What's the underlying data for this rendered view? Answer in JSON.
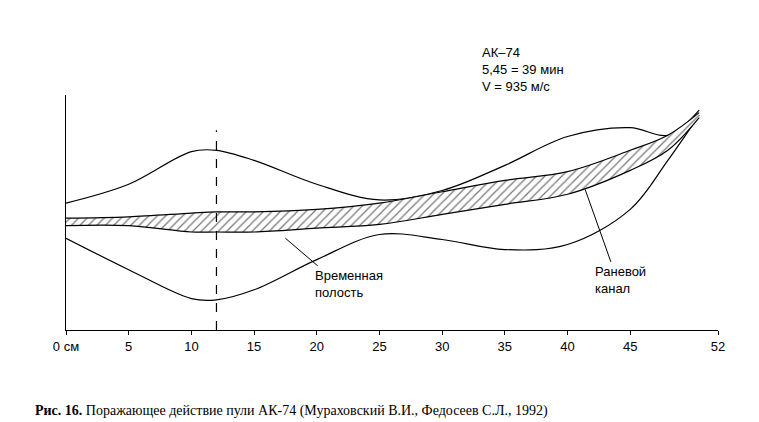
{
  "chart_data": {
    "type": "line",
    "annotations": [
      "АК–74",
      "5,45 = 39 мин",
      "V = 935 м/с"
    ],
    "caption": {
      "label": "Рис. 16.",
      "text": "Поражающее действие пули АК-74 (Мураховский В.И., Федосеев С.Л., 1992)"
    },
    "x": [
      0,
      5,
      10,
      12,
      15,
      20,
      25,
      30,
      35,
      40,
      45,
      48,
      50.5
    ],
    "series": [
      {
        "name": "Временная полость",
        "color": "#000000",
        "upper": [
          1.5,
          3.0,
          5.6,
          5.7,
          4.9,
          3.0,
          1.75,
          2.5,
          4.5,
          6.8,
          7.5,
          6.9,
          8.9
        ],
        "lower": [
          -1.3,
          -3.8,
          -6.1,
          -6.2,
          -5.4,
          -3.0,
          -1.0,
          -1.4,
          -2.2,
          -1.8,
          1.0,
          4.9,
          8.5
        ]
      },
      {
        "name": "Раневой канал",
        "color": "#000000",
        "upper": [
          0.3,
          0.4,
          0.7,
          0.8,
          0.8,
          1.0,
          1.5,
          2.4,
          3.3,
          4.0,
          5.7,
          6.9,
          8.7
        ],
        "lower": [
          -0.3,
          -0.3,
          -0.8,
          -0.8,
          -0.8,
          -0.5,
          -0.2,
          0.6,
          1.4,
          2.2,
          4.1,
          5.7,
          8.3
        ]
      }
    ],
    "reference_line": {
      "x": 12,
      "line_style": "dashed"
    },
    "xlim": [
      0,
      52
    ],
    "xticks": [
      {
        "value": 0,
        "label": "0 см"
      },
      5,
      10,
      15,
      20,
      25,
      30,
      35,
      40,
      45,
      52
    ],
    "ylim": [
      -8.6,
      10.1
    ],
    "grid": false,
    "tick_labels": "x"
  }
}
